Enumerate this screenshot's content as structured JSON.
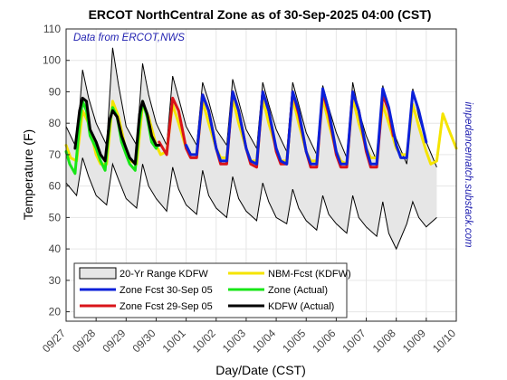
{
  "chart_data": {
    "type": "line",
    "title": "ERCOT NorthCentral Zone as of 30-Sep-2025 04:00 (CST)",
    "source_note": "Data from ERCOT,NWS",
    "watermark": "impedancematch.substack.com",
    "xlabel": "Day/Date (CST)",
    "ylabel": "Temperature (F)",
    "ylim": [
      17,
      110
    ],
    "yticks": [
      20,
      30,
      40,
      50,
      60,
      70,
      80,
      90,
      100,
      110
    ],
    "xlim": [
      0,
      13
    ],
    "xticks": [
      {
        "x": 0,
        "label": "09/27"
      },
      {
        "x": 1,
        "label": "09/28"
      },
      {
        "x": 2,
        "label": "09/29"
      },
      {
        "x": 3,
        "label": "09/30"
      },
      {
        "x": 4,
        "label": "10/01"
      },
      {
        "x": 5,
        "label": "10/02"
      },
      {
        "x": 6,
        "label": "10/03"
      },
      {
        "x": 7,
        "label": "10/04"
      },
      {
        "x": 8,
        "label": "10/05"
      },
      {
        "x": 9,
        "label": "10/06"
      },
      {
        "x": 10,
        "label": "10/07"
      },
      {
        "x": 11,
        "label": "10/08"
      },
      {
        "x": 12,
        "label": "10/09"
      },
      {
        "x": 13,
        "label": "10/10"
      }
    ],
    "grid": true,
    "legend_position": "bottom-left",
    "legend_columns": 2,
    "range_band": {
      "name": "20-Yr Range KDFW",
      "color": "#e6e6e6",
      "edge_color": "#000000",
      "x": [
        0,
        0.35,
        0.55,
        0.75,
        1,
        1.35,
        1.55,
        1.75,
        2,
        2.35,
        2.55,
        2.75,
        3,
        3.35,
        3.55,
        3.75,
        4,
        4.35,
        4.55,
        4.75,
        5,
        5.35,
        5.55,
        5.75,
        6,
        6.35,
        6.55,
        6.75,
        7,
        7.35,
        7.55,
        7.75,
        8,
        8.35,
        8.55,
        8.75,
        9,
        9.35,
        9.55,
        9.75,
        10,
        10.35,
        10.55,
        10.75,
        11,
        11.35,
        11.55,
        11.75,
        12,
        12.35
      ],
      "upper": [
        79,
        72,
        97,
        88,
        80,
        73,
        104,
        92,
        79,
        73,
        99,
        89,
        80,
        73,
        95,
        88,
        79,
        73,
        93,
        87,
        78,
        73,
        94,
        87,
        78,
        72,
        93,
        86,
        78,
        71,
        93,
        86,
        77,
        70,
        92,
        85,
        77,
        69,
        93,
        84,
        76,
        68,
        92,
        83,
        75,
        67,
        91,
        82,
        74,
        66
      ],
      "lower": [
        61,
        57,
        69,
        63,
        57,
        54,
        67,
        62,
        56,
        53,
        67,
        60,
        56,
        52,
        66,
        59,
        54,
        51,
        65,
        57,
        53,
        50,
        63,
        56,
        52,
        49,
        61,
        55,
        50,
        48,
        59,
        53,
        49,
        46,
        57,
        51,
        48,
        45,
        57,
        50,
        47,
        44,
        55,
        45,
        40,
        48,
        55,
        50,
        47,
        50
      ]
    },
    "series": [
      {
        "name": "Zone Fcst 30-Sep 05",
        "color": "#0b20d9",
        "width": 3,
        "x": [
          4,
          4.15,
          4.35,
          4.55,
          4.75,
          5,
          5.15,
          5.35,
          5.55,
          5.75,
          6,
          6.15,
          6.35,
          6.55,
          6.75,
          7,
          7.15,
          7.35,
          7.55,
          7.75,
          8,
          8.15,
          8.35,
          8.55,
          8.75,
          9,
          9.15,
          9.35,
          9.55,
          9.75,
          10,
          10.15,
          10.35,
          10.55,
          10.75,
          11,
          11.15,
          11.35,
          11.55,
          11.75,
          12
        ],
        "y": [
          73,
          70,
          70,
          89,
          84,
          72,
          68,
          68,
          90,
          84,
          72,
          68,
          67,
          90,
          84,
          72,
          68,
          67,
          90,
          84,
          71,
          67,
          67,
          91,
          84,
          71,
          67,
          67,
          90,
          84,
          72,
          67,
          67,
          91,
          85,
          73,
          69,
          69,
          90,
          84,
          74
        ]
      },
      {
        "name": "Zone Fcst 29-Sep 05",
        "color": "#d9141a",
        "width": 3,
        "x": [
          3.1,
          3.35,
          3.55,
          3.75,
          4,
          4.15,
          4.35,
          4.55,
          4.75,
          5,
          5.15,
          5.35,
          5.55,
          5.75,
          6,
          6.15,
          6.35,
          6.55,
          6.75,
          7,
          7.15,
          7.35,
          7.55,
          7.75,
          8,
          8.15,
          8.35,
          8.55,
          8.75,
          9,
          9.15,
          9.35,
          9.55,
          9.75,
          10,
          10.15,
          10.35,
          10.55,
          10.75,
          10.9
        ],
        "y": [
          74,
          70,
          88,
          84,
          72,
          69,
          69,
          89,
          84,
          72,
          67,
          67,
          90,
          84,
          72,
          67,
          66,
          90,
          84,
          71,
          67,
          67,
          90,
          83,
          71,
          66,
          66,
          90,
          83,
          70,
          66,
          66,
          90,
          84,
          71,
          66,
          66,
          89,
          84,
          76
        ]
      },
      {
        "name": "NBM-Fcst (KDFW)",
        "color": "#f5e400",
        "width": 3,
        "x": [
          0,
          0.15,
          0.35,
          0.55,
          0.75,
          1,
          1.15,
          1.35,
          1.55,
          1.75,
          2,
          2.15,
          2.35,
          2.55,
          2.75,
          3,
          3.15,
          3.35,
          3.55,
          3.75,
          4,
          4.15,
          4.35,
          4.55,
          4.75,
          5,
          5.15,
          5.35,
          5.55,
          5.75,
          6,
          6.15,
          6.35,
          6.55,
          6.75,
          7,
          7.15,
          7.35,
          7.55,
          7.75,
          8,
          8.15,
          8.35,
          8.55,
          8.75,
          9,
          9.15,
          9.35,
          9.55,
          9.75,
          10,
          10.15,
          10.35,
          10.55,
          10.75,
          11,
          11.15,
          11.35,
          11.55,
          11.75,
          12,
          12.15,
          12.35,
          12.55,
          12.75,
          13
        ],
        "y": [
          73,
          69,
          68,
          84,
          80,
          70,
          67,
          67,
          87,
          82,
          71,
          68,
          67,
          86,
          82,
          73,
          70,
          71,
          86,
          80,
          72,
          70,
          70,
          87,
          80,
          72,
          69,
          69,
          88,
          80,
          72,
          68,
          68,
          88,
          80,
          72,
          68,
          68,
          88,
          80,
          71,
          68,
          68,
          88,
          80,
          71,
          68,
          67,
          88,
          80,
          72,
          69,
          69,
          86,
          80,
          72,
          70,
          70,
          86,
          79,
          71,
          67,
          68,
          83,
          78,
          72
        ]
      },
      {
        "name": "Zone (Actual)",
        "color": "#17e617",
        "width": 3,
        "x": [
          0,
          0.12,
          0.3,
          0.45,
          0.55,
          0.68,
          0.8,
          1,
          1.15,
          1.3,
          1.45,
          1.55,
          1.7,
          1.85,
          2,
          2.12,
          2.3,
          2.45,
          2.55,
          2.7,
          2.85,
          3,
          3.05
        ],
        "y": [
          71,
          67,
          64,
          80,
          87,
          84,
          76,
          72,
          68,
          65,
          80,
          85,
          82,
          74,
          70,
          67,
          65,
          80,
          87,
          82,
          74,
          72,
          73
        ]
      },
      {
        "name": "KDFW (Actual)",
        "color": "#000000",
        "width": 3,
        "x": [
          0.3,
          0.45,
          0.55,
          0.68,
          0.8,
          1,
          1.15,
          1.3,
          1.45,
          1.55,
          1.7,
          1.85,
          2,
          2.12,
          2.3,
          2.45,
          2.55,
          2.7,
          2.85,
          3,
          3.1
        ],
        "y": [
          72,
          84,
          88,
          87,
          78,
          74,
          70,
          68,
          81,
          84,
          82,
          76,
          72,
          69,
          67,
          83,
          87,
          83,
          76,
          73,
          73
        ]
      }
    ]
  }
}
